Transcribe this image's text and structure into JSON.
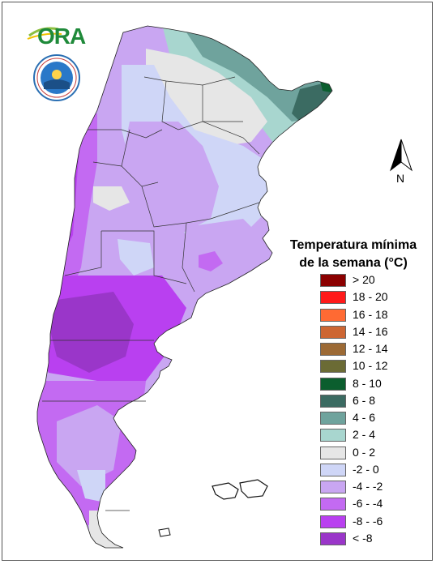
{
  "logos": {
    "ora_text": "ORA",
    "smn_emblem": "weather-service-seal"
  },
  "north_arrow": {
    "label": "N"
  },
  "legend": {
    "title_line1": "Temperatura mínima",
    "title_line2": "de la semana (°C)",
    "items": [
      {
        "label": "> 20",
        "color": "#8b0000"
      },
      {
        "label": "18 - 20",
        "color": "#ff1a1a"
      },
      {
        "label": "16 - 18",
        "color": "#ff6a33"
      },
      {
        "label": "14 - 16",
        "color": "#cd6633"
      },
      {
        "label": "12 - 14",
        "color": "#9c6a35"
      },
      {
        "label": "10 - 12",
        "color": "#6b6b35"
      },
      {
        "label": "8 - 10",
        "color": "#0b5e2e"
      },
      {
        "label": "6 - 8",
        "color": "#3b6b62"
      },
      {
        "label": "4 - 6",
        "color": "#6fa39d"
      },
      {
        "label": "2 - 4",
        "color": "#a8d6cf"
      },
      {
        "label": "0 - 2",
        "color": "#e6e6e6"
      },
      {
        "label": "-2 - 0",
        "color": "#cfd6f7"
      },
      {
        "label": "-4 - -2",
        "color": "#c9a6f2"
      },
      {
        "label": "-6 - -4",
        "color": "#c36af2"
      },
      {
        "label": "-8 - -6",
        "color": "#b940f0"
      },
      {
        "label": "< -8",
        "color": "#9a36c9"
      }
    ]
  },
  "map": {
    "country": "Argentina",
    "dominant_ranges": [
      "-6 - -4",
      "-4 - -2",
      "-2 - 0",
      "0 - 2",
      "2 - 4",
      "4 - 6"
    ]
  }
}
